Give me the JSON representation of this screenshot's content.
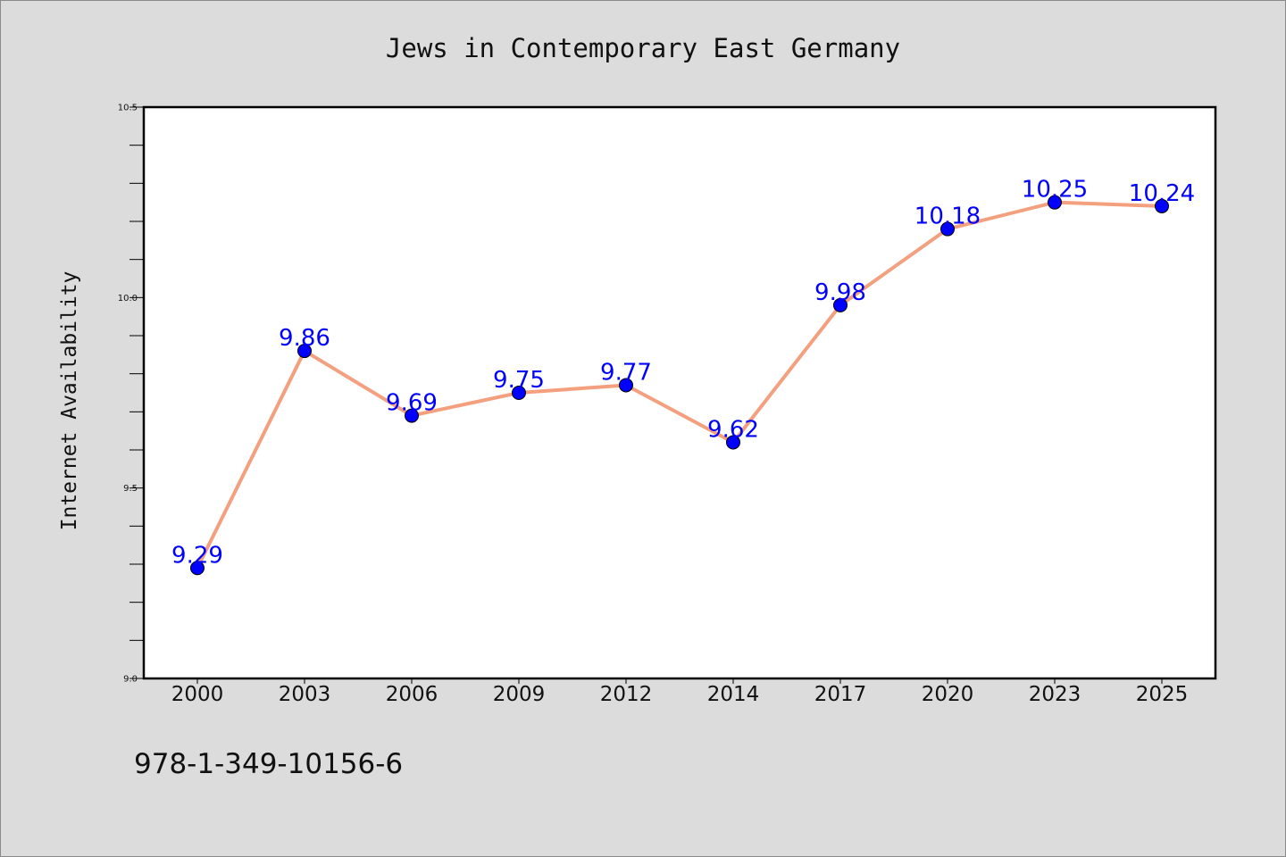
{
  "chart_data": {
    "type": "line",
    "title": "Jews in Contemporary East Germany",
    "xlabel": "",
    "ylabel": "Internet Availability",
    "categories": [
      "2000",
      "2003",
      "2006",
      "2009",
      "2012",
      "2014",
      "2017",
      "2020",
      "2023",
      "2025"
    ],
    "series": [
      {
        "values": [
          9.29,
          9.86,
          9.69,
          9.75,
          9.77,
          9.62,
          9.98,
          10.18,
          10.25,
          10.24
        ]
      }
    ],
    "data_labels": [
      "9.29",
      "9.86",
      "9.69",
      "9.75",
      "9.77",
      "9.62",
      "9.98",
      "10.18",
      "10.25",
      "10.24"
    ],
    "ylim": [
      9.0,
      10.5
    ],
    "yticks": [
      "9.0",
      "9.5",
      "10.0",
      "10.5"
    ],
    "grid": false,
    "legend": "none"
  },
  "footer": {
    "isbn": "978-1-349-10156-6"
  },
  "colors": {
    "background": "#dcdcdc",
    "plot_area": "#ffffff",
    "line": "#f4a07f",
    "marker": "#0000ff",
    "data_label": "#0000ff",
    "axis": "#000000"
  }
}
